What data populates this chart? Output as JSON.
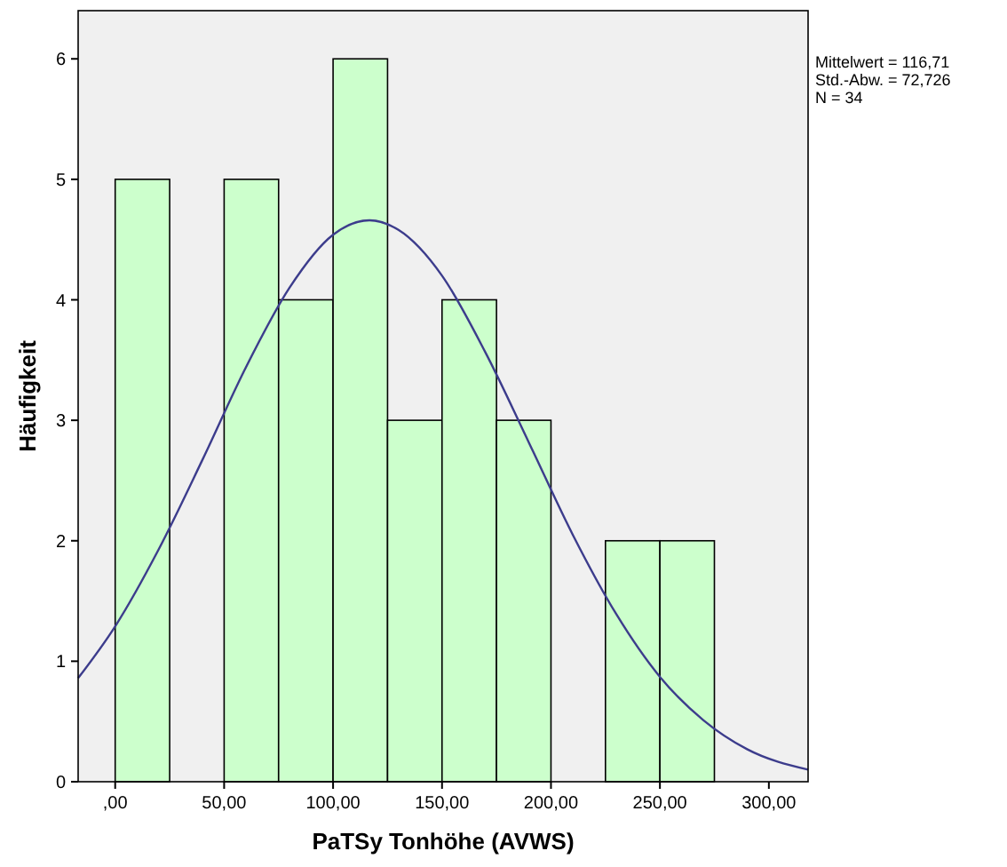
{
  "chart_data": {
    "type": "histogram",
    "xlabel": "PaTSy Tonhöhe (AVWS)",
    "ylabel": "Häufigkeit",
    "xlim": [
      -17,
      318
    ],
    "ylim": [
      0,
      6.4
    ],
    "xticks": [
      {
        "value": 0,
        "label": ",00"
      },
      {
        "value": 50,
        "label": "50,00"
      },
      {
        "value": 100,
        "label": "100,00"
      },
      {
        "value": 150,
        "label": "150,00"
      },
      {
        "value": 200,
        "label": "200,00"
      },
      {
        "value": 250,
        "label": "250,00"
      },
      {
        "value": 300,
        "label": "300,00"
      }
    ],
    "yticks": [
      0,
      1,
      2,
      3,
      4,
      5,
      6
    ],
    "grid": false,
    "annotations": [
      "Mittelwert = 116,71",
      "Std.-Abw. = 72,726",
      "N = 34"
    ],
    "series": [
      {
        "color": "#ccffcc",
        "bins": [
          0,
          25,
          50,
          75,
          100,
          125,
          150,
          175,
          200,
          225,
          250,
          275
        ],
        "values": [
          5,
          0,
          5,
          4,
          6,
          3,
          4,
          3,
          0,
          2,
          2
        ]
      },
      {
        "type": "line",
        "color": "#3c3c8c",
        "x": [
          -17,
          0,
          20,
          40,
          60,
          80,
          100,
          116.71,
          130,
          150,
          170,
          190,
          210,
          230,
          250,
          270,
          290,
          318
        ],
        "values": [
          0.86,
          1.29,
          1.93,
          2.67,
          3.44,
          4.1,
          4.54,
          4.66,
          4.58,
          4.2,
          3.56,
          2.81,
          2.05,
          1.39,
          0.87,
          0.51,
          0.27,
          0.1
        ]
      }
    ]
  }
}
